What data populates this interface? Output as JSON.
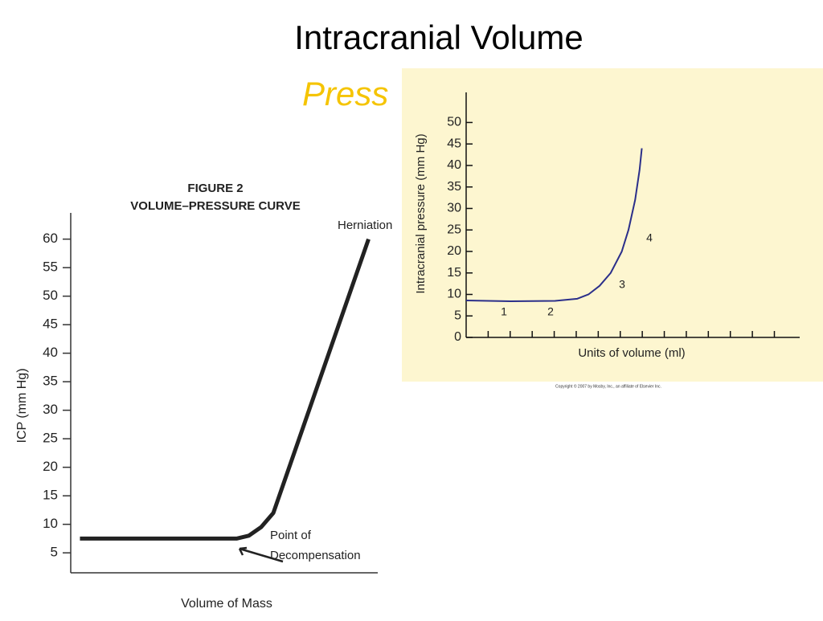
{
  "slide": {
    "title": "Intracranial Volume",
    "subtitle": "Press"
  },
  "chart_data": [
    {
      "type": "line",
      "title": "FIGURE 2",
      "subtitle": "VOLUME–PRESSURE CURVE",
      "y_label": "ICP (mm Hg)",
      "x_label": "Volume of Mass",
      "x": [
        3,
        54,
        58,
        62,
        66,
        97
      ],
      "values": [
        7.5,
        7.5,
        8,
        9.5,
        12,
        60
      ],
      "color": "#222222",
      "xlim": [
        0,
        100
      ],
      "ylim": [
        1.5,
        64.6
      ],
      "yticks": [
        5,
        10,
        15,
        20,
        25,
        30,
        35,
        40,
        45,
        50,
        55,
        60
      ],
      "annotations": [
        "Herniation",
        "Point of",
        "Decompensation"
      ]
    },
    {
      "type": "line",
      "y_label": "Intracranial pressure (mm Hg)",
      "x_label": "Units of volume (ml)",
      "x": [
        0,
        2,
        4,
        5,
        5.5,
        6,
        6.5,
        7,
        7.3,
        7.6,
        7.8,
        7.9
      ],
      "values": [
        8.6,
        8.4,
        8.5,
        9,
        10,
        12,
        15,
        20,
        25,
        32,
        39,
        44
      ],
      "color": "#2b2f8a",
      "xlim": [
        0,
        15
      ],
      "ylim": [
        0,
        57
      ],
      "yticks": [
        0,
        5,
        10,
        15,
        20,
        25,
        30,
        35,
        40,
        45,
        50
      ],
      "annotations": [
        "1",
        "2",
        "3",
        "4"
      ],
      "note": "Copyright © 2007 by Mosby, Inc., an affiliate of Elsevier Inc."
    }
  ]
}
